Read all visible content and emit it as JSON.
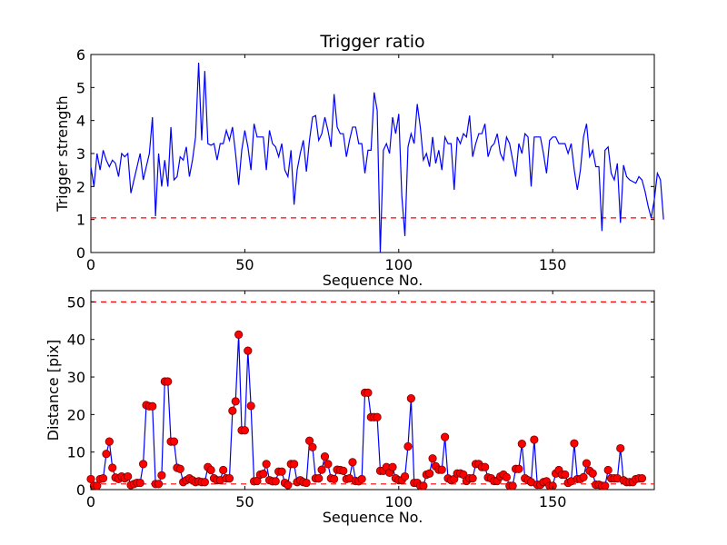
{
  "colors": {
    "line": "#0000ff",
    "threshold": "#ff0000",
    "marker_fill": "#ff0000",
    "marker_edge": "#7a0000"
  },
  "chart_data": [
    {
      "type": "line",
      "title": "Trigger ratio",
      "xlabel": "Sequence No.",
      "ylabel": "Trigger strength",
      "xlim": [
        0,
        183
      ],
      "ylim": [
        0,
        6
      ],
      "xticks": [
        0,
        50,
        100,
        150
      ],
      "yticks": [
        0,
        1,
        2,
        3,
        4,
        5,
        6
      ],
      "threshold": 1.05,
      "series": [
        {
          "markers": false,
          "values": [
            2.6,
            2.0,
            3.0,
            2.5,
            3.1,
            2.8,
            2.6,
            2.8,
            2.7,
            2.3,
            3.0,
            2.9,
            3.0,
            1.8,
            2.2,
            2.6,
            3.0,
            2.2,
            2.6,
            3.0,
            4.1,
            1.1,
            3.0,
            2.0,
            2.8,
            2.0,
            3.8,
            2.2,
            2.3,
            2.9,
            2.8,
            3.2,
            2.3,
            2.8,
            3.5,
            5.75,
            3.4,
            5.5,
            3.3,
            3.25,
            3.3,
            2.8,
            3.3,
            3.3,
            3.7,
            3.4,
            3.8,
            3.0,
            2.05,
            3.1,
            3.7,
            3.2,
            2.5,
            3.9,
            3.5,
            3.5,
            3.5,
            2.5,
            3.7,
            3.3,
            3.2,
            2.9,
            3.3,
            2.5,
            2.3,
            3.1,
            1.45,
            2.5,
            3.0,
            3.4,
            2.45,
            3.4,
            4.1,
            4.15,
            3.4,
            3.6,
            4.1,
            3.7,
            3.2,
            4.8,
            3.8,
            3.6,
            3.6,
            2.9,
            3.4,
            3.8,
            3.8,
            3.3,
            3.3,
            2.4,
            3.1,
            3.1,
            4.85,
            4.3,
            0.0,
            3.1,
            3.3,
            3.0,
            4.1,
            3.6,
            4.2,
            1.7,
            0.5,
            3.2,
            3.6,
            3.3,
            4.5,
            3.8,
            2.8,
            3.0,
            2.6,
            3.5,
            2.7,
            3.1,
            2.5,
            3.5,
            3.3,
            3.3,
            1.9,
            3.5,
            3.3,
            3.6,
            3.5,
            4.15,
            2.9,
            3.3,
            3.6,
            3.6,
            3.9,
            2.9,
            3.2,
            3.3,
            3.6,
            3.0,
            2.8,
            3.5,
            3.3,
            2.8,
            2.3,
            3.3,
            3.0,
            3.6,
            3.5,
            2.0,
            3.5,
            3.5,
            3.5,
            3.0,
            2.4,
            3.4,
            3.5,
            3.5,
            3.3,
            3.3,
            3.3,
            3.0,
            3.3,
            2.5,
            1.9,
            2.5,
            3.5,
            3.9,
            2.9,
            3.1,
            2.6,
            2.6,
            0.65,
            3.1,
            3.2,
            2.4,
            2.2,
            2.7,
            0.9,
            2.65,
            2.3,
            2.2,
            2.15,
            2.1,
            2.3,
            2.2,
            1.85,
            1.4,
            1.05,
            1.6,
            2.4,
            2.2,
            1.0
          ]
        }
      ]
    },
    {
      "type": "line",
      "title": "",
      "xlabel": "Sequence No.",
      "ylabel": "Distance [pix]",
      "xlim": [
        0,
        183
      ],
      "ylim": [
        0,
        53
      ],
      "xticks": [
        0,
        50,
        100,
        150
      ],
      "yticks": [
        0,
        10,
        20,
        30,
        40,
        50
      ],
      "thresholds": [
        50,
        1.5
      ],
      "series": [
        {
          "markers": true,
          "values": [
            2.8,
            1.0,
            1.0,
            2.8,
            3.0,
            9.5,
            12.8,
            5.8,
            3.2,
            2.8,
            3.5,
            3.0,
            3.5,
            1.2,
            1.5,
            1.8,
            1.8,
            6.8,
            22.5,
            22.2,
            22.2,
            1.5,
            1.5,
            3.8,
            28.8,
            28.8,
            12.8,
            12.8,
            5.8,
            5.5,
            2.0,
            2.5,
            3.0,
            2.5,
            2.0,
            2.2,
            2.0,
            2.0,
            6.0,
            5.2,
            3.0,
            2.5,
            2.5,
            5.2,
            3.0,
            3.0,
            21.0,
            23.5,
            41.3,
            15.8,
            15.8,
            37.0,
            22.3,
            2.2,
            2.3,
            4.0,
            4.2,
            6.8,
            2.5,
            2.2,
            2.2,
            4.8,
            4.8,
            1.8,
            1.2,
            6.8,
            6.8,
            2.0,
            2.5,
            2.0,
            1.8,
            13.0,
            11.3,
            3.0,
            3.0,
            5.3,
            8.8,
            6.8,
            3.0,
            2.8,
            5.3,
            5.2,
            5.0,
            2.8,
            3.0,
            7.3,
            2.3,
            2.2,
            2.8,
            25.8,
            25.8,
            19.3,
            19.3,
            19.3,
            5.0,
            5.0,
            6.0,
            4.5,
            6.0,
            3.0,
            2.5,
            2.5,
            3.5,
            11.5,
            24.3,
            1.8,
            1.8,
            1.0,
            1.0,
            4.0,
            4.3,
            8.3,
            6.2,
            5.3,
            5.3,
            14.0,
            3.0,
            2.5,
            2.8,
            4.3,
            4.3,
            4.0,
            2.3,
            3.0,
            3.0,
            6.8,
            6.8,
            6.0,
            6.0,
            3.2,
            3.0,
            2.3,
            2.3,
            3.5,
            4.0,
            3.3,
            1.0,
            1.0,
            5.5,
            5.5,
            12.2,
            3.0,
            2.5,
            2.0,
            13.3,
            1.3,
            1.3,
            2.0,
            2.2,
            1.0,
            1.0,
            4.3,
            5.2,
            4.0,
            4.0,
            1.8,
            2.2,
            12.3,
            2.8,
            2.8,
            3.3,
            7.0,
            5.0,
            4.3,
            1.3,
            1.3,
            1.0,
            1.0,
            5.2,
            3.0,
            3.0,
            3.0,
            11.0,
            2.5,
            2.0,
            2.0,
            2.0,
            2.8,
            3.0,
            3.0
          ]
        }
      ]
    }
  ]
}
